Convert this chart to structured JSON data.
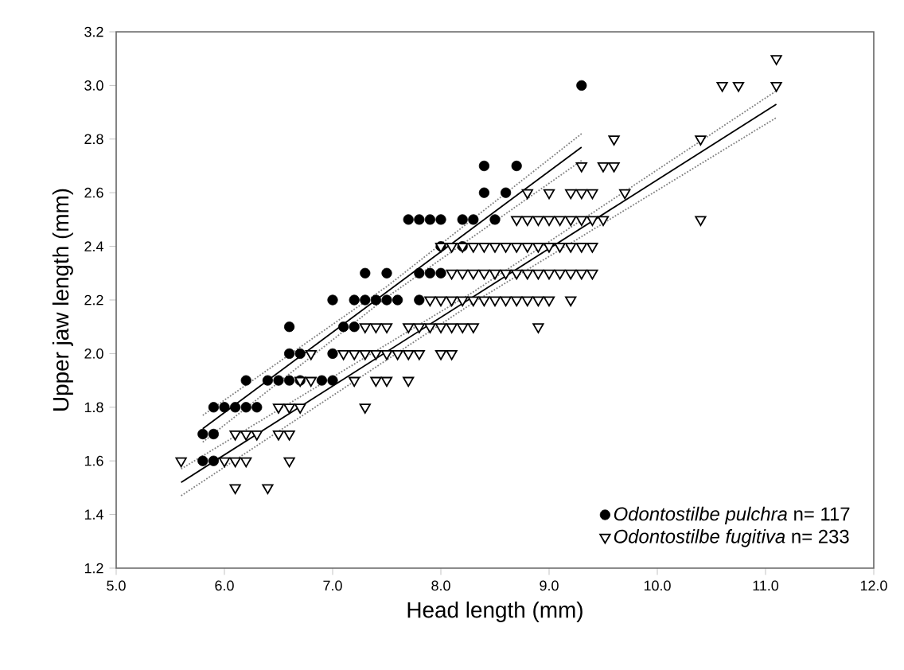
{
  "chart_data": {
    "type": "scatter",
    "xlabel": "Head length (mm)",
    "ylabel": "Upper jaw length (mm)",
    "xlim": [
      5.0,
      12.0
    ],
    "ylim": [
      1.2,
      3.2
    ],
    "xticks": [
      {
        "value": 5,
        "label": "5.0"
      },
      {
        "value": 6,
        "label": "6.0"
      },
      {
        "value": 7,
        "label": "7.0"
      },
      {
        "value": 8,
        "label": "8.0"
      },
      {
        "value": 9,
        "label": "9.0"
      },
      {
        "value": 10,
        "label": "10.0"
      },
      {
        "value": 11,
        "label": "11.0"
      },
      {
        "value": 12,
        "label": "12.0"
      }
    ],
    "yticks": [
      1.2,
      1.4,
      1.6,
      1.8,
      {
        "value": 2,
        "label": "2.0"
      },
      2.2,
      2.4,
      2.6,
      2.8,
      {
        "value": 3,
        "label": "3.0"
      },
      3.2
    ],
    "legend": "bottom right",
    "grid": false,
    "series": [
      {
        "name": "*Odontostilbe pulchra* n= 117",
        "marker": "circle",
        "color": "#000000",
        "x": [
          5.8,
          5.9,
          5.8,
          5.9,
          5.9,
          6.0,
          6.1,
          6.2,
          6.3,
          6.2,
          6.4,
          6.5,
          6.6,
          6.7,
          6.9,
          7.0,
          6.6,
          6.7,
          7.0,
          6.6,
          7.1,
          7.2,
          7.0,
          7.2,
          7.3,
          7.4,
          7.5,
          7.6,
          7.8,
          7.3,
          7.5,
          7.8,
          7.9,
          8.0,
          8.0,
          8.2,
          7.7,
          7.8,
          7.9,
          8.0,
          8.2,
          8.3,
          8.5,
          8.4,
          8.6,
          8.4,
          8.7,
          9.3
        ],
        "values": [
          1.6,
          1.6,
          1.7,
          1.7,
          1.8,
          1.8,
          1.8,
          1.8,
          1.8,
          1.9,
          1.9,
          1.9,
          1.9,
          1.9,
          1.9,
          1.9,
          2.0,
          2.0,
          2.0,
          2.1,
          2.1,
          2.1,
          2.2,
          2.2,
          2.2,
          2.2,
          2.2,
          2.2,
          2.2,
          2.3,
          2.3,
          2.3,
          2.3,
          2.3,
          2.4,
          2.4,
          2.5,
          2.5,
          2.5,
          2.5,
          2.5,
          2.5,
          2.5,
          2.6,
          2.6,
          2.7,
          2.7,
          3.0
        ]
      },
      {
        "name": "*Odontostilbe fugitiva* n= 233",
        "marker": "triangle",
        "color": "#000000",
        "x": [
          6.1,
          6.4,
          5.6,
          6.0,
          6.1,
          6.2,
          6.6,
          6.1,
          6.2,
          6.3,
          6.5,
          6.6,
          6.5,
          6.6,
          6.7,
          7.3,
          6.7,
          6.8,
          7.2,
          7.4,
          7.5,
          7.7,
          6.8,
          7.1,
          7.2,
          7.3,
          7.4,
          7.5,
          7.6,
          7.7,
          7.8,
          8.0,
          8.1,
          7.3,
          7.4,
          7.5,
          7.7,
          7.8,
          7.9,
          8.0,
          8.1,
          8.2,
          8.3,
          8.9,
          7.9,
          8.0,
          8.1,
          8.2,
          8.3,
          8.4,
          8.5,
          8.6,
          8.7,
          8.8,
          8.9,
          9.0,
          9.2,
          8.1,
          8.2,
          8.3,
          8.4,
          8.5,
          8.6,
          8.7,
          8.8,
          8.9,
          9.0,
          9.1,
          9.2,
          9.3,
          9.4,
          8.0,
          8.1,
          8.2,
          8.3,
          8.4,
          8.5,
          8.6,
          8.7,
          8.8,
          8.9,
          9.0,
          9.1,
          9.2,
          9.3,
          9.4,
          8.7,
          8.8,
          8.9,
          9.0,
          9.1,
          9.2,
          9.3,
          9.4,
          9.5,
          10.4,
          8.8,
          9.0,
          9.2,
          9.3,
          9.4,
          9.7,
          9.3,
          9.5,
          9.6,
          9.6,
          10.4,
          10.6,
          10.75,
          11.1,
          11.1
        ],
        "values": [
          1.5,
          1.5,
          1.6,
          1.6,
          1.6,
          1.6,
          1.6,
          1.7,
          1.7,
          1.7,
          1.7,
          1.7,
          1.8,
          1.8,
          1.8,
          1.8,
          1.9,
          1.9,
          1.9,
          1.9,
          1.9,
          1.9,
          2.0,
          2.0,
          2.0,
          2.0,
          2.0,
          2.0,
          2.0,
          2.0,
          2.0,
          2.0,
          2.0,
          2.1,
          2.1,
          2.1,
          2.1,
          2.1,
          2.1,
          2.1,
          2.1,
          2.1,
          2.1,
          2.1,
          2.2,
          2.2,
          2.2,
          2.2,
          2.2,
          2.2,
          2.2,
          2.2,
          2.2,
          2.2,
          2.2,
          2.2,
          2.2,
          2.3,
          2.3,
          2.3,
          2.3,
          2.3,
          2.3,
          2.3,
          2.3,
          2.3,
          2.3,
          2.3,
          2.3,
          2.3,
          2.3,
          2.4,
          2.4,
          2.4,
          2.4,
          2.4,
          2.4,
          2.4,
          2.4,
          2.4,
          2.4,
          2.4,
          2.4,
          2.4,
          2.4,
          2.4,
          2.5,
          2.5,
          2.5,
          2.5,
          2.5,
          2.5,
          2.5,
          2.5,
          2.5,
          2.5,
          2.6,
          2.6,
          2.6,
          2.6,
          2.6,
          2.6,
          2.7,
          2.7,
          2.7,
          2.8,
          2.8,
          3.0,
          3.0,
          3.0,
          3.1
        ]
      },
      {
        "type": "line",
        "color": "#000000",
        "line_style": "solid",
        "x": [
          5.8,
          9.3
        ],
        "values": [
          1.72,
          2.77
        ]
      },
      {
        "type": "line",
        "color": "#808080",
        "line_style": "dotted",
        "x": [
          5.8,
          7.5,
          9.3
        ],
        "values": [
          1.67,
          2.21,
          2.72
        ]
      },
      {
        "type": "line",
        "color": "#808080",
        "line_style": "dotted",
        "x": [
          5.8,
          7.5,
          9.3
        ],
        "values": [
          1.77,
          2.25,
          2.82
        ]
      },
      {
        "type": "line",
        "color": "#000000",
        "line_style": "solid",
        "x": [
          5.6,
          11.1
        ],
        "values": [
          1.52,
          2.93
        ]
      },
      {
        "type": "line",
        "color": "#808080",
        "line_style": "dotted",
        "x": [
          5.6,
          8.3,
          11.1
        ],
        "values": [
          1.47,
          2.19,
          2.88
        ]
      },
      {
        "type": "line",
        "color": "#808080",
        "line_style": "dotted",
        "x": [
          5.6,
          8.3,
          11.1
        ],
        "values": [
          1.57,
          2.23,
          2.98
        ]
      }
    ]
  }
}
